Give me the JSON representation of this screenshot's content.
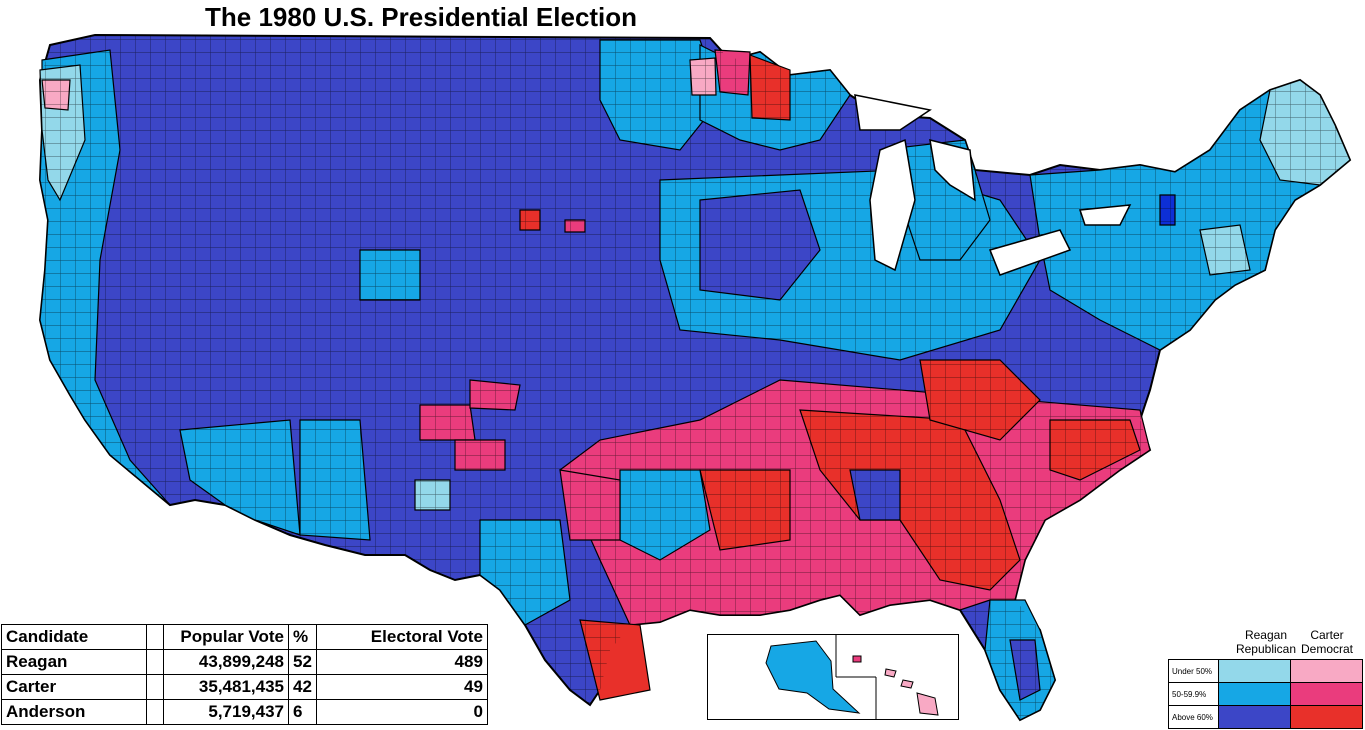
{
  "title": "The 1980 U.S. Presidential Election",
  "colors": {
    "reagan_under_50": "#93d8ea",
    "reagan_50_59": "#16a7e5",
    "reagan_above_60": "#3c46c7",
    "carter_under_50": "#f8a9c4",
    "carter_50_59": "#ea3c7d",
    "carter_above_60": "#e8302a",
    "border": "#000000"
  },
  "results_table": {
    "headers": [
      "Candidate",
      "Popular Vote",
      "%",
      "Electoral Vote"
    ],
    "rows": [
      {
        "candidate": "Reagan",
        "popular_vote": "43,899,248",
        "percent": "52",
        "electoral_vote": "489"
      },
      {
        "candidate": "Carter",
        "popular_vote": "35,481,435",
        "percent": "42",
        "electoral_vote": "49"
      },
      {
        "candidate": "Anderson",
        "popular_vote": "5,719,437",
        "percent": "6",
        "electoral_vote": "0"
      }
    ]
  },
  "legend": {
    "columns": [
      {
        "line1": "Reagan",
        "line2": "Republican"
      },
      {
        "line1": "Carter",
        "line2": "Democrat"
      }
    ],
    "rows": [
      "Under 50%",
      "50-59.9%",
      "Above 60%"
    ]
  }
}
